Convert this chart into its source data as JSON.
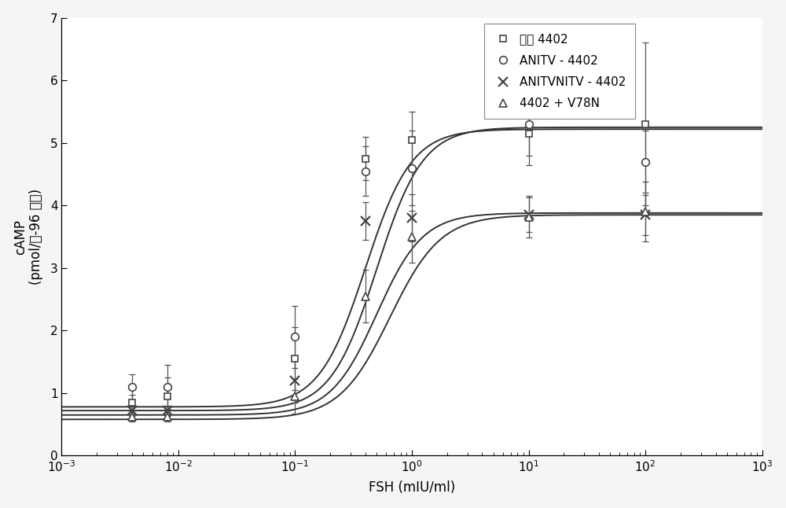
{
  "title": "",
  "xlabel": "FSH (mIU/ml)",
  "ylabel": "cAMP\n(pmol/孔-96 孔板)",
  "ylim": [
    0,
    7
  ],
  "yticks": [
    0,
    1,
    2,
    3,
    4,
    5,
    6,
    7
  ],
  "series": [
    {
      "label": "瞬时 4402",
      "marker": "s",
      "x_data": [
        0.004,
        0.008,
        0.1,
        0.4,
        1.0,
        10.0,
        100.0
      ],
      "y_data": [
        0.85,
        0.95,
        1.55,
        4.75,
        5.05,
        5.15,
        5.3
      ],
      "y_err": [
        0.12,
        0.3,
        0.5,
        0.35,
        0.45,
        0.5,
        1.3
      ],
      "ec50": 0.5,
      "hill_n": 2.2,
      "ymin": 0.72,
      "ymax": 5.25
    },
    {
      "label": "ANITV - 4402",
      "marker": "o",
      "x_data": [
        0.004,
        0.008,
        0.1,
        0.4,
        1.0,
        10.0,
        100.0
      ],
      "y_data": [
        1.1,
        1.1,
        1.9,
        4.55,
        4.6,
        5.3,
        4.7
      ],
      "y_err": [
        0.2,
        0.35,
        0.5,
        0.4,
        0.6,
        0.5,
        0.5
      ],
      "ec50": 0.4,
      "hill_n": 2.2,
      "ymin": 0.78,
      "ymax": 5.22
    },
    {
      "label": "ANITVNITV - 4402",
      "marker": "x",
      "x_data": [
        0.004,
        0.008,
        0.1,
        0.4,
        1.0,
        10.0,
        100.0
      ],
      "y_data": [
        0.72,
        0.72,
        1.2,
        3.75,
        3.8,
        3.85,
        3.85
      ],
      "y_err": [
        0.08,
        0.08,
        0.35,
        0.3,
        0.38,
        0.28,
        0.32
      ],
      "ec50": 0.5,
      "hill_n": 2.2,
      "ymin": 0.65,
      "ymax": 3.88
    },
    {
      "label": "4402 + V78N",
      "marker": "^",
      "x_data": [
        0.004,
        0.008,
        0.1,
        0.4,
        1.0,
        10.0,
        100.0
      ],
      "y_data": [
        0.62,
        0.62,
        0.95,
        2.55,
        3.5,
        3.82,
        3.9
      ],
      "y_err": [
        0.08,
        0.08,
        0.28,
        0.42,
        0.42,
        0.33,
        0.48
      ],
      "ec50": 0.65,
      "hill_n": 2.0,
      "ymin": 0.58,
      "ymax": 3.85
    }
  ],
  "background_color": "#f5f5f5",
  "plot_bg_color": "#ffffff",
  "legend_fontsize": 11,
  "axis_label_fontsize": 12,
  "tick_fontsize": 11
}
